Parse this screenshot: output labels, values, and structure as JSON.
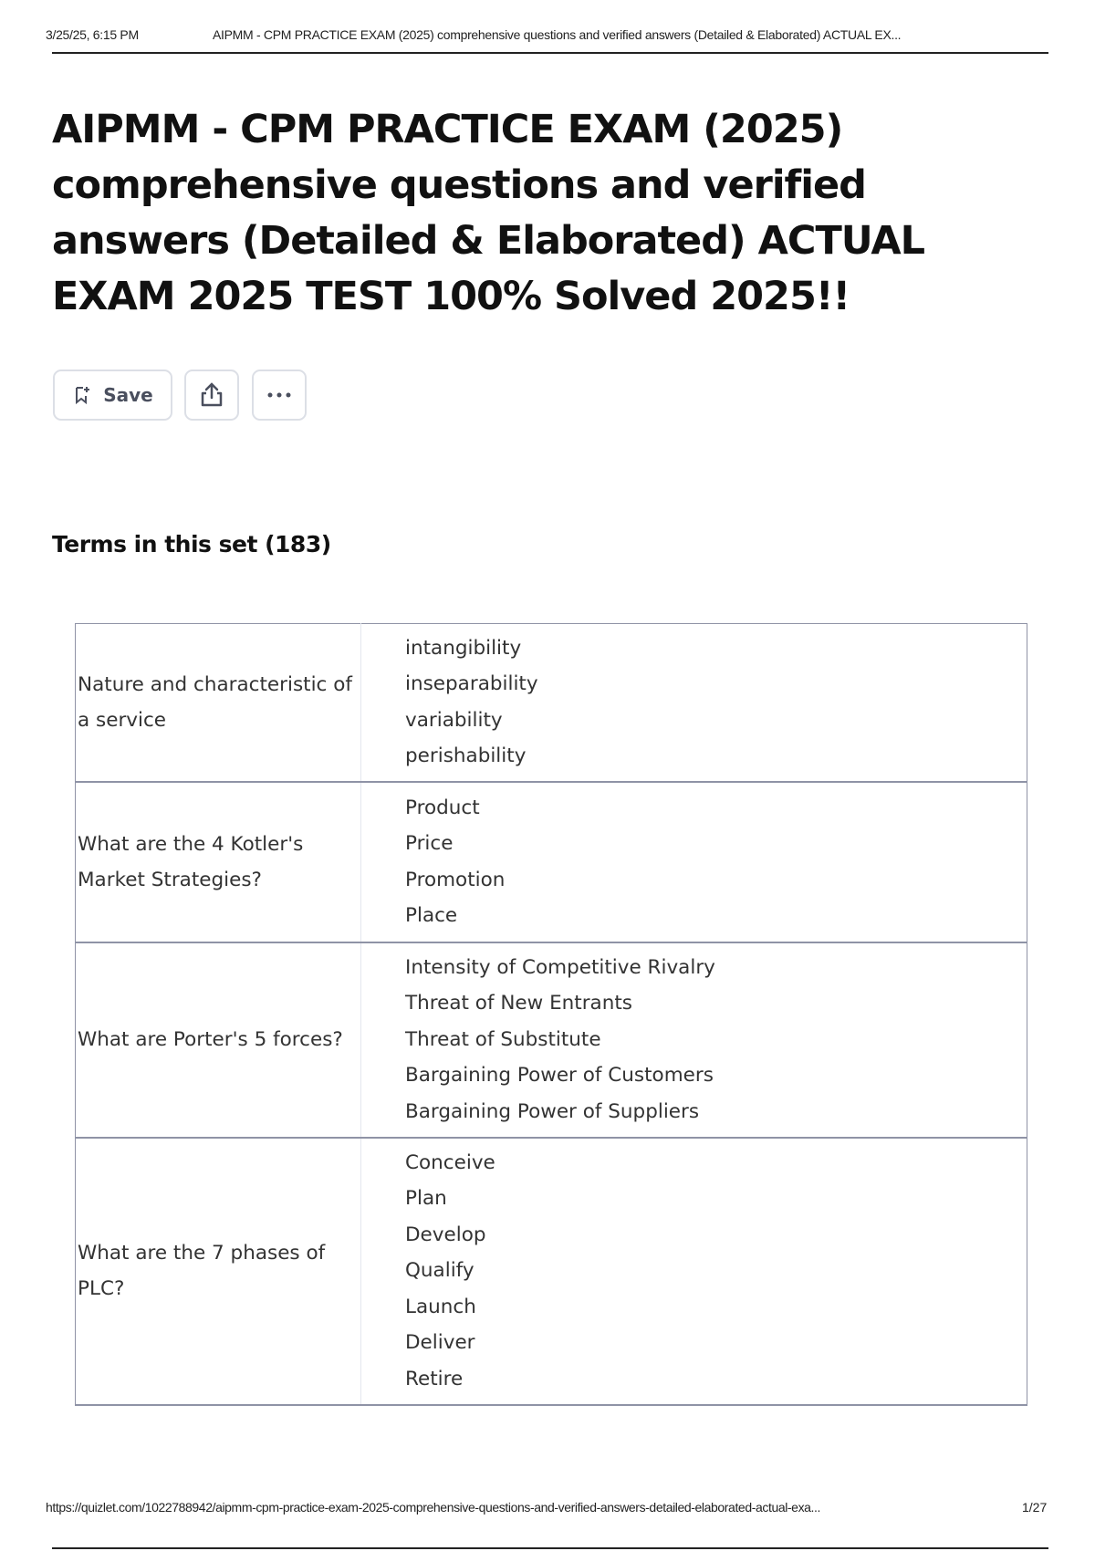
{
  "print_header": {
    "datetime": "3/25/25, 6:15 PM",
    "title": "AIPMM - CPM PRACTICE EXAM (2025) comprehensive questions and verified answers (Detailed & Elaborated) ACTUAL EX..."
  },
  "page_title": "AIPMM - CPM PRACTICE EXAM (2025) comprehensive questions and verified answers (Detailed & Elaborated) ACTUAL EXAM 2025 TEST 100% Solved 2025!!",
  "actions": {
    "save_label": "Save",
    "save_icon": "bookmark-plus-icon",
    "share_icon": "share-icon",
    "more_icon": "more-horizontal-icon"
  },
  "terms_heading": "Terms in this set (183)",
  "cards": [
    {
      "term": "Nature and characteristic of a service",
      "definition": [
        "intangibility",
        "inseparability",
        "variability",
        "perishability"
      ]
    },
    {
      "term": "What are the 4 Kotler's Market Strategies?",
      "definition": [
        "Product",
        "Price",
        "Promotion",
        "Place"
      ]
    },
    {
      "term": "What are Porter's 5 forces?",
      "definition": [
        "Intensity of Competitive Rivalry",
        "Threat of New Entrants",
        "Threat of Substitute",
        "Bargaining Power of Customers",
        "Bargaining Power of Suppliers"
      ]
    },
    {
      "term": "What are the 7 phases of PLC?",
      "definition": [
        "Conceive",
        "Plan",
        "Develop",
        "Qualify",
        "Launch",
        "Deliver",
        "Retire"
      ]
    }
  ],
  "print_footer": {
    "url": "https://quizlet.com/1022788942/aipmm-cpm-practice-exam-2025-comprehensive-questions-and-verified-answers-detailed-elaborated-actual-exa...",
    "page": "1/27"
  }
}
